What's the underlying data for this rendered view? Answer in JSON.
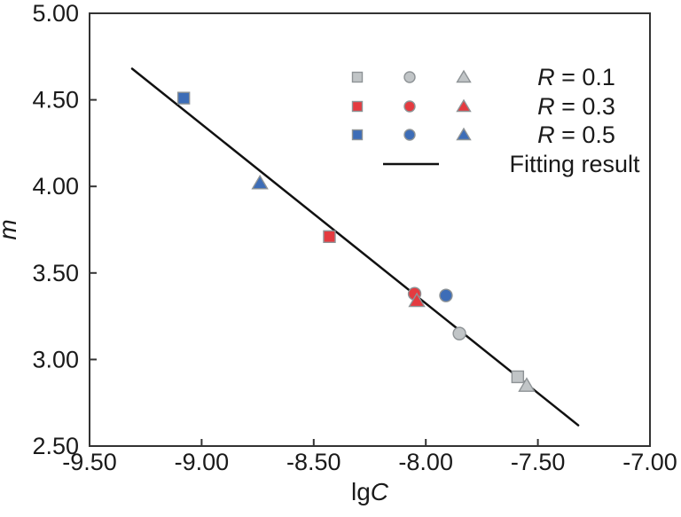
{
  "figure": {
    "background": "#ffffff"
  },
  "chart_data": {
    "type": "scatter",
    "title": "",
    "xlabel": "lgC",
    "ylabel": "m",
    "xlabel_parts": [
      {
        "text": "lg",
        "italic": false
      },
      {
        "text": "C",
        "italic": true
      }
    ],
    "ylabel_parts": [
      {
        "text": "m",
        "italic": true
      }
    ],
    "xlim": [
      -9.5,
      -7.0
    ],
    "ylim": [
      2.5,
      5.0
    ],
    "grid": false,
    "axis_color": "#333333",
    "text_color": "#1a1a1a",
    "x_ticks": [
      {
        "value": -9.5,
        "label": "-9.50"
      },
      {
        "value": -9.0,
        "label": "-9.00"
      },
      {
        "value": -8.5,
        "label": "-8.50"
      },
      {
        "value": -8.0,
        "label": "-8.00"
      },
      {
        "value": -7.5,
        "label": "-7.50"
      },
      {
        "value": -7.0,
        "label": "-7.00"
      }
    ],
    "y_ticks": [
      {
        "value": 2.5,
        "label": "2.50"
      },
      {
        "value": 3.0,
        "label": "3.00"
      },
      {
        "value": 3.5,
        "label": "3.50"
      },
      {
        "value": 4.0,
        "label": "4.00"
      },
      {
        "value": 4.5,
        "label": "4.50"
      },
      {
        "value": 5.0,
        "label": "5.00"
      }
    ],
    "series": [
      {
        "name": "R = 0.1",
        "label_parts": [
          {
            "text": "R",
            "italic": true
          },
          {
            "text": " = 0.1",
            "italic": false
          }
        ],
        "fill": "#c1c5c7",
        "stroke": "#8e9396",
        "points": [
          {
            "marker": "circle",
            "x": -7.85,
            "y": 3.15
          },
          {
            "marker": "square",
            "x": -7.59,
            "y": 2.9
          },
          {
            "marker": "triangle",
            "x": -7.55,
            "y": 2.85
          }
        ]
      },
      {
        "name": "R = 0.3",
        "label_parts": [
          {
            "text": "R",
            "italic": true
          },
          {
            "text": " = 0.3",
            "italic": false
          }
        ],
        "fill": "#e43b40",
        "stroke": "#8e9396",
        "points": [
          {
            "marker": "square",
            "x": -8.43,
            "y": 3.71
          },
          {
            "marker": "circle",
            "x": -8.05,
            "y": 3.38
          },
          {
            "marker": "triangle",
            "x": -8.04,
            "y": 3.34
          }
        ]
      },
      {
        "name": "R = 0.5",
        "label_parts": [
          {
            "text": "R",
            "italic": true
          },
          {
            "text": " = 0.5",
            "italic": false
          }
        ],
        "fill": "#3d6db7",
        "stroke": "#8e9396",
        "points": [
          {
            "marker": "square",
            "x": -9.08,
            "y": 4.51
          },
          {
            "marker": "triangle",
            "x": -8.74,
            "y": 4.02
          },
          {
            "marker": "circle",
            "x": -7.91,
            "y": 3.37
          }
        ]
      }
    ],
    "fit_line": {
      "label": "Fitting result",
      "label_parts": [
        {
          "text": "Fitting result",
          "italic": false
        }
      ],
      "color": "#111111",
      "x": [
        -9.31,
        -7.32
      ],
      "y": [
        4.68,
        2.62
      ]
    },
    "legend": {
      "position": "top-right-inside",
      "marker_order": [
        "square",
        "circle",
        "triangle"
      ]
    }
  }
}
